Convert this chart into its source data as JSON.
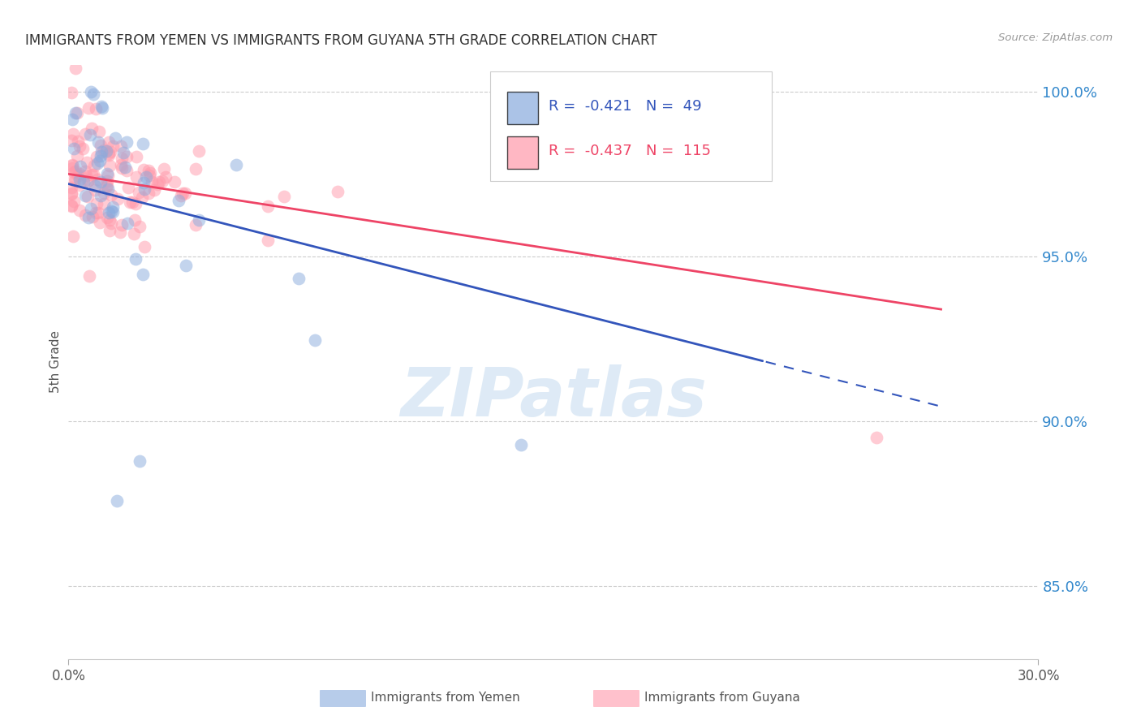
{
  "title": "IMMIGRANTS FROM YEMEN VS IMMIGRANTS FROM GUYANA 5TH GRADE CORRELATION CHART",
  "source": "Source: ZipAtlas.com",
  "ylabel": "5th Grade",
  "xlim": [
    0.0,
    0.3
  ],
  "ylim": [
    0.828,
    1.008
  ],
  "yticks": [
    0.85,
    0.9,
    0.95,
    1.0
  ],
  "ytick_labels": [
    "85.0%",
    "90.0%",
    "95.0%",
    "100.0%"
  ],
  "legend_R_yemen": "-0.421",
  "legend_N_yemen": "49",
  "legend_R_guyana": "-0.437",
  "legend_N_guyana": "115",
  "color_yemen": "#88aadd",
  "color_guyana": "#ff99aa",
  "line_color_yemen": "#3355bb",
  "line_color_guyana": "#ee4466",
  "background_color": "#ffffff",
  "watermark_color": "#c8ddf0",
  "xtick_labels": [
    "0.0%",
    "30.0%"
  ],
  "xticks": [
    0.0,
    0.3
  ]
}
